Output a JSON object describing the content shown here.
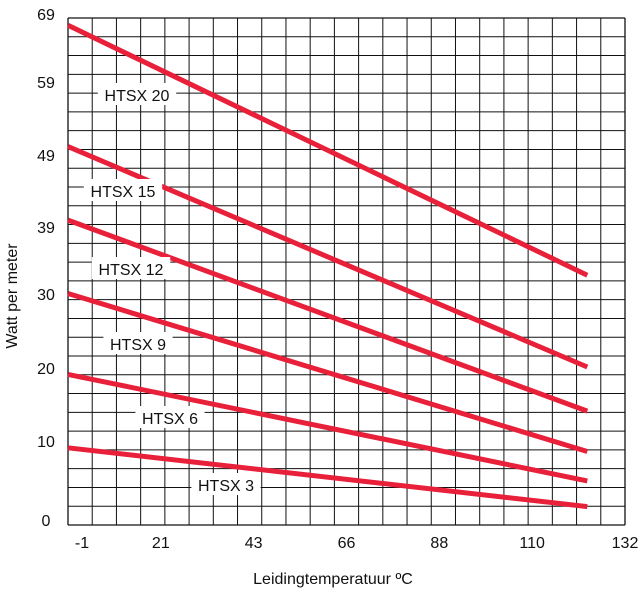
{
  "chart_data": {
    "type": "line",
    "title": "",
    "xlabel": "Leidingtemperatuur ºC",
    "ylabel": "Watt per meter",
    "x_ticks": [
      "-1",
      "21",
      "43",
      "66",
      "88",
      "110",
      "132"
    ],
    "y_ticks": [
      "0",
      "10",
      "20",
      "30",
      "39",
      "49",
      "59",
      "69"
    ],
    "xlim": [
      -1,
      132
    ],
    "ylim": [
      0,
      69
    ],
    "grid": true,
    "colors": {
      "line": "#e8203a",
      "grid": "#111111"
    },
    "series": [
      {
        "name": "HTSX 20",
        "x": [
          -1,
          123
        ],
        "y": [
          68,
          34
        ]
      },
      {
        "name": "HTSX 15",
        "x": [
          -1,
          123
        ],
        "y": [
          51.5,
          21.5
        ]
      },
      {
        "name": "HTSX 12",
        "x": [
          -1,
          123
        ],
        "y": [
          41.5,
          15.5
        ]
      },
      {
        "name": "HTSX 9",
        "x": [
          -1,
          123
        ],
        "y": [
          31.5,
          10
        ]
      },
      {
        "name": "HTSX 6",
        "x": [
          -1,
          123
        ],
        "y": [
          20.5,
          6
        ]
      },
      {
        "name": "HTSX 3",
        "x": [
          -1,
          123
        ],
        "y": [
          10.5,
          2.5
        ]
      }
    ]
  }
}
